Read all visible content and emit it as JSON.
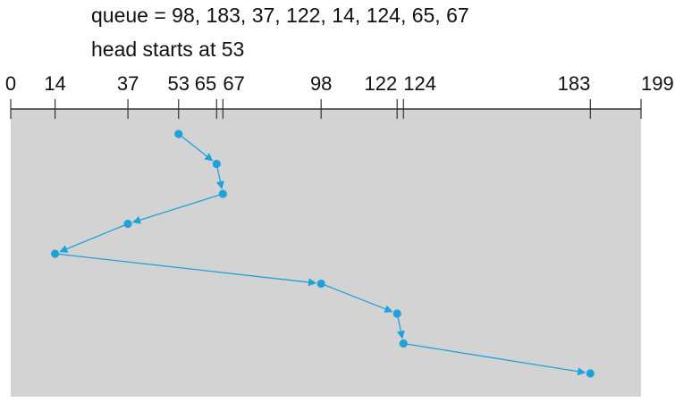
{
  "caption": {
    "queue_line": "queue = 98, 183, 37, 122, 14, 124, 65, 67",
    "head_line": "head starts at 53"
  },
  "chart_data": {
    "type": "line",
    "axis_min": 0,
    "axis_max": 199,
    "ticks": [
      0,
      14,
      37,
      53,
      65,
      67,
      98,
      122,
      124,
      183,
      199
    ],
    "tick_labels": [
      "0",
      "14",
      "37",
      "53",
      "65",
      "67",
      "98",
      "122",
      "124",
      "183",
      "199"
    ],
    "sequence": [
      53,
      65,
      67,
      37,
      14,
      98,
      122,
      124,
      183
    ],
    "colors": {
      "path": "#1fa2dc",
      "panel": "#d3d3d3",
      "axis": "#333333"
    }
  }
}
